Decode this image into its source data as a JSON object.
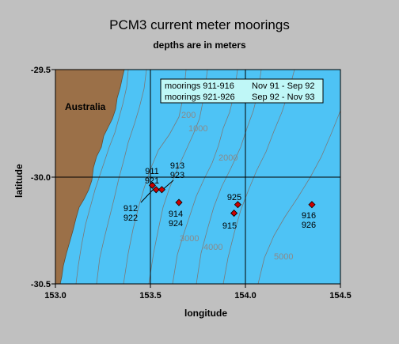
{
  "title": "PCM3 current meter moorings",
  "subtitle": "depths are in meters",
  "axes": {
    "xlabel": "longitude",
    "ylabel": "latitude",
    "xlim": [
      153.0,
      154.5
    ],
    "ylim": [
      -30.5,
      -29.5
    ],
    "xticks": [
      "153.0",
      "153.5",
      "154.0",
      "154.5"
    ],
    "yticks": [
      "-29.5",
      "-30.0",
      "-30.5"
    ],
    "grid_lines_lon": [
      153.5,
      154.0
    ],
    "grid_lines_lat": [
      -30.0
    ]
  },
  "colors": {
    "ocean": "#4ec3f5",
    "land": "#9b7048",
    "contour": "#7a7a7a",
    "marker": "#cc0000",
    "legend_bg": "#bff7f7",
    "page_bg": "#c0c0c0"
  },
  "land_label": "Australia",
  "legend": [
    {
      "moorings": "moorings 911-916",
      "period": "Nov 91 - Sep 92"
    },
    {
      "moorings": "moorings 921-926",
      "period": "Sep 92 - Nov 93"
    }
  ],
  "contour_labels": [
    "200",
    "1000",
    "2000",
    "3000",
    "4000",
    "5000"
  ],
  "moorings": [
    {
      "label": [
        "911",
        "921"
      ],
      "lon": 153.51,
      "lat": -30.04
    },
    {
      "label": [
        "912",
        "922"
      ],
      "lon": 153.53,
      "lat": -30.06
    },
    {
      "label": [
        "913",
        "923"
      ],
      "lon": 153.56,
      "lat": -30.06
    },
    {
      "label": [
        "914",
        "924"
      ],
      "lon": 153.65,
      "lat": -30.12
    },
    {
      "label": [
        "915"
      ],
      "lon": 153.94,
      "lat": -30.17
    },
    {
      "label": [
        "925"
      ],
      "lon": 153.96,
      "lat": -30.13
    },
    {
      "label": [
        "916",
        "926"
      ],
      "lon": 154.35,
      "lat": -30.13
    }
  ]
}
